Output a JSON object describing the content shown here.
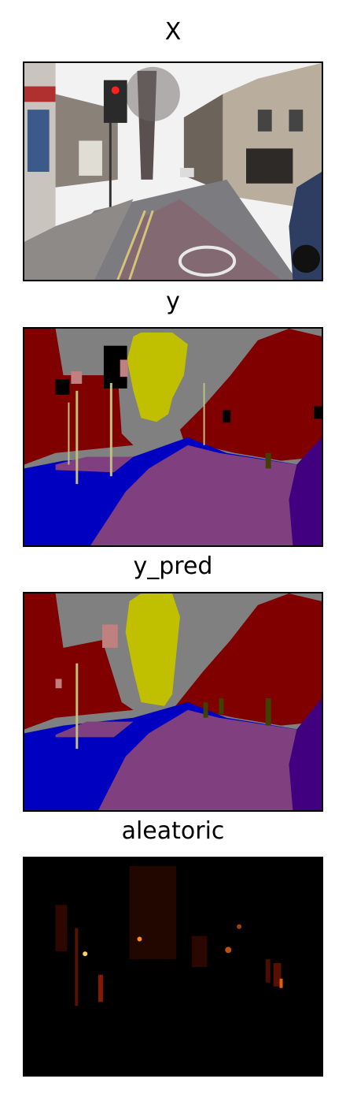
{
  "figure": {
    "panels": [
      {
        "title": "X",
        "kind": "street-photo"
      },
      {
        "title": "y",
        "kind": "ground-truth-segmentation"
      },
      {
        "title": "y_pred",
        "kind": "predicted-segmentation"
      },
      {
        "title": "aleatoric",
        "kind": "uncertainty-heatmap"
      }
    ]
  },
  "colors": {
    "building": "#800000",
    "sky": "#808080",
    "tree": "#c0c000",
    "pole": "#c0c080",
    "road": "#804080",
    "pavement": "#0000c0",
    "car": "#400080",
    "pedestrian": "#404000",
    "sign": "#c08080",
    "void": "#000000",
    "heat": "#ff8c1a"
  }
}
